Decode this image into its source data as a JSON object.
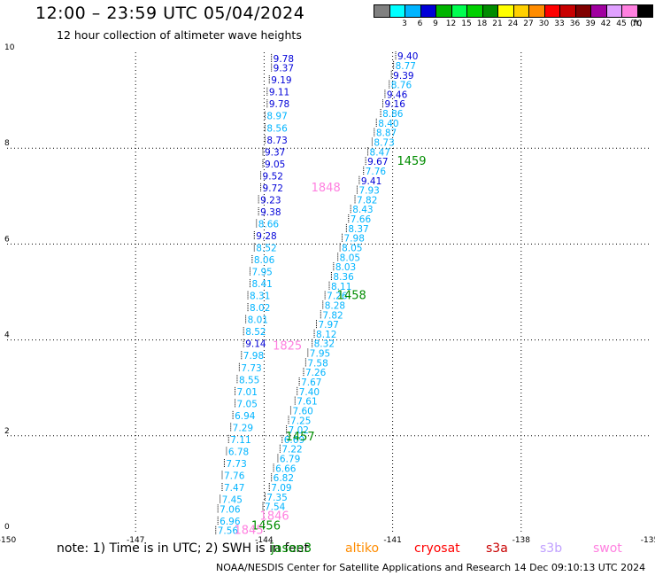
{
  "header": {
    "title": "12:00 – 23:59 UTC 05/04/2024",
    "subtitle": "12 hour collection of altimeter wave heights"
  },
  "colorbar": {
    "unit": "(ft)",
    "bins": [
      {
        "label": "",
        "color": "#808080"
      },
      {
        "label": "3",
        "color": "#00ffff"
      },
      {
        "label": "6",
        "color": "#00b4ff"
      },
      {
        "label": "9",
        "color": "#0000d8"
      },
      {
        "label": "12",
        "color": "#00b400"
      },
      {
        "label": "15",
        "color": "#00ff50"
      },
      {
        "label": "18",
        "color": "#00d000"
      },
      {
        "label": "21",
        "color": "#008c00"
      },
      {
        "label": "24",
        "color": "#ffff00"
      },
      {
        "label": "27",
        "color": "#ffd000"
      },
      {
        "label": "30",
        "color": "#ff8c00"
      },
      {
        "label": "33",
        "color": "#ff0000"
      },
      {
        "label": "36",
        "color": "#c80000"
      },
      {
        "label": "39",
        "color": "#800000"
      },
      {
        "label": "42",
        "color": "#a000a0"
      },
      {
        "label": "45",
        "color": "#e0a0ff"
      },
      {
        "label": "70",
        "color": "#ff80e0"
      },
      {
        "label": "",
        "color": "#000000"
      }
    ]
  },
  "legend": {
    "note": "note:  1) Time is in UTC;  2) SWH is in feet",
    "satellites": [
      {
        "name": "jason3",
        "color": "#008c00"
      },
      {
        "name": "altiko",
        "color": "#ff8c00"
      },
      {
        "name": "cryosat",
        "color": "#ff0000"
      },
      {
        "name": "s3a",
        "color": "#c80000"
      },
      {
        "name": "s3b",
        "color": "#c0a0ff"
      },
      {
        "name": "swot",
        "color": "#ff80e0"
      }
    ]
  },
  "footer": "NOAA/NESDIS Center for Satellite Applications and Research   14 Dec 09:10:13 UTC 2024",
  "chart_data": {
    "type": "scatter",
    "title": "12:00 – 23:59 UTC 05/04/2024",
    "subtitle": "12 hour collection of altimeter wave heights",
    "xlim": [
      -150,
      -135
    ],
    "ylim": [
      0,
      10
    ],
    "xticks": [
      "-150",
      "-147",
      "-144",
      "-141",
      "-138",
      "-135"
    ],
    "yticks": [
      "0",
      "2",
      "4",
      "6",
      "8",
      "10"
    ],
    "grid": true,
    "track_labels": [
      {
        "text": "1459",
        "x": -140.9,
        "y": 7.65,
        "color": "#008c00"
      },
      {
        "text": "1848",
        "x": -142.9,
        "y": 7.1,
        "color": "#ff80e0"
      },
      {
        "text": "1458",
        "x": -142.3,
        "y": 4.85,
        "color": "#008c00"
      },
      {
        "text": "1825",
        "x": -143.8,
        "y": 3.8,
        "color": "#ff80e0"
      },
      {
        "text": "1457",
        "x": -143.5,
        "y": 1.9,
        "color": "#008c00"
      },
      {
        "text": "1846",
        "x": -144.1,
        "y": 0.25,
        "color": "#ff80e0"
      },
      {
        "text": "1456",
        "x": -144.3,
        "y": 0.05,
        "color": "#008c00"
      },
      {
        "text": "1845",
        "x": -144.7,
        "y": -0.05,
        "color": "#ff80e0"
      }
    ],
    "series": [
      {
        "name": "1459",
        "points": [
          {
            "x": -140.95,
            "y": 9.85,
            "v": "9.40",
            "c": "#0000d8"
          },
          {
            "x": -141.0,
            "y": 9.65,
            "v": "8.77",
            "c": "#00b4ff"
          },
          {
            "x": -141.05,
            "y": 9.45,
            "v": "9.39",
            "c": "#0000d8"
          },
          {
            "x": -141.1,
            "y": 9.25,
            "v": "8.76",
            "c": "#00b4ff"
          },
          {
            "x": -141.2,
            "y": 9.05,
            "v": "9.46",
            "c": "#0000d8"
          },
          {
            "x": -141.25,
            "y": 8.85,
            "v": "9.16",
            "c": "#0000d8"
          },
          {
            "x": -141.3,
            "y": 8.65,
            "v": "8.86",
            "c": "#00b4ff"
          },
          {
            "x": -141.4,
            "y": 8.45,
            "v": "8.40",
            "c": "#00b4ff"
          },
          {
            "x": -141.45,
            "y": 8.25,
            "v": "8.87",
            "c": "#00b4ff"
          },
          {
            "x": -141.5,
            "y": 8.05,
            "v": "8.73",
            "c": "#00b4ff"
          },
          {
            "x": -141.6,
            "y": 7.85,
            "v": "8.47",
            "c": "#00b4ff"
          },
          {
            "x": -141.65,
            "y": 7.65,
            "v": "9.67",
            "c": "#0000d8"
          },
          {
            "x": -141.7,
            "y": 7.45,
            "v": "7.76",
            "c": "#00b4ff"
          },
          {
            "x": -141.8,
            "y": 7.25,
            "v": "9.41",
            "c": "#0000d8"
          },
          {
            "x": -141.85,
            "y": 7.05,
            "v": "7.93",
            "c": "#00b4ff"
          },
          {
            "x": -141.9,
            "y": 6.85,
            "v": "7.82",
            "c": "#00b4ff"
          },
          {
            "x": -142.0,
            "y": 6.65,
            "v": "8.43",
            "c": "#00b4ff"
          },
          {
            "x": -142.05,
            "y": 6.45,
            "v": "7.66",
            "c": "#00b4ff"
          },
          {
            "x": -142.1,
            "y": 6.25,
            "v": "8.37",
            "c": "#00b4ff"
          },
          {
            "x": -142.2,
            "y": 6.05,
            "v": "7.98",
            "c": "#00b4ff"
          },
          {
            "x": -142.25,
            "y": 5.85,
            "v": "8.05",
            "c": "#00b4ff"
          },
          {
            "x": -142.3,
            "y": 5.65,
            "v": "8.05",
            "c": "#00b4ff"
          },
          {
            "x": -142.4,
            "y": 5.45,
            "v": "8.03",
            "c": "#00b4ff"
          },
          {
            "x": -142.45,
            "y": 5.25,
            "v": "8.36",
            "c": "#00b4ff"
          },
          {
            "x": -142.5,
            "y": 5.05,
            "v": "8.11",
            "c": "#00b4ff"
          },
          {
            "x": -142.6,
            "y": 4.85,
            "v": "7.26",
            "c": "#00b4ff"
          },
          {
            "x": -142.65,
            "y": 4.65,
            "v": "8.28",
            "c": "#00b4ff"
          },
          {
            "x": -142.7,
            "y": 4.45,
            "v": "7.82",
            "c": "#00b4ff"
          },
          {
            "x": -142.8,
            "y": 4.25,
            "v": "7.97",
            "c": "#00b4ff"
          },
          {
            "x": -142.85,
            "y": 4.05,
            "v": "8.12",
            "c": "#00b4ff"
          },
          {
            "x": -142.9,
            "y": 3.85,
            "v": "8.32",
            "c": "#00b4ff"
          },
          {
            "x": -143.0,
            "y": 3.65,
            "v": "7.95",
            "c": "#00b4ff"
          },
          {
            "x": -143.05,
            "y": 3.45,
            "v": "7.58",
            "c": "#00b4ff"
          },
          {
            "x": -143.1,
            "y": 3.25,
            "v": "7.26",
            "c": "#00b4ff"
          },
          {
            "x": -143.2,
            "y": 3.05,
            "v": "7.67",
            "c": "#00b4ff"
          },
          {
            "x": -143.25,
            "y": 2.85,
            "v": "7.40",
            "c": "#00b4ff"
          },
          {
            "x": -143.3,
            "y": 2.65,
            "v": "7.61",
            "c": "#00b4ff"
          },
          {
            "x": -143.4,
            "y": 2.45,
            "v": "7.60",
            "c": "#00b4ff"
          },
          {
            "x": -143.45,
            "y": 2.25,
            "v": "7.25",
            "c": "#00b4ff"
          },
          {
            "x": -143.5,
            "y": 2.05,
            "v": "7.02",
            "c": "#00b4ff"
          },
          {
            "x": -143.6,
            "y": 1.85,
            "v": "6.69",
            "c": "#00b4ff"
          },
          {
            "x": -143.65,
            "y": 1.65,
            "v": "7.22",
            "c": "#00b4ff"
          },
          {
            "x": -143.7,
            "y": 1.45,
            "v": "6.79",
            "c": "#00b4ff"
          },
          {
            "x": -143.8,
            "y": 1.25,
            "v": "6.66",
            "c": "#00b4ff"
          },
          {
            "x": -143.85,
            "y": 1.05,
            "v": "6.82",
            "c": "#00b4ff"
          },
          {
            "x": -143.9,
            "y": 0.85,
            "v": "7.09",
            "c": "#00b4ff"
          },
          {
            "x": -144.0,
            "y": 0.65,
            "v": "7.35",
            "c": "#00b4ff"
          },
          {
            "x": -144.05,
            "y": 0.45,
            "v": "7.54",
            "c": "#00b4ff"
          }
        ]
      },
      {
        "name": "1848",
        "points": [
          {
            "x": -143.85,
            "y": 9.8,
            "v": "9.78",
            "c": "#0000d8"
          },
          {
            "x": -143.85,
            "y": 9.6,
            "v": "9.37",
            "c": "#0000d8"
          },
          {
            "x": -143.9,
            "y": 9.35,
            "v": "9.19",
            "c": "#0000d8"
          },
          {
            "x": -143.95,
            "y": 9.1,
            "v": "9.11",
            "c": "#0000d8"
          },
          {
            "x": -143.95,
            "y": 8.85,
            "v": "9.78",
            "c": "#0000d8"
          },
          {
            "x": -144.0,
            "y": 8.6,
            "v": "8.97",
            "c": "#00b4ff"
          },
          {
            "x": -144.0,
            "y": 8.35,
            "v": "8.56",
            "c": "#00b4ff"
          },
          {
            "x": -144.0,
            "y": 8.1,
            "v": "8.73",
            "c": "#0000d8"
          },
          {
            "x": -144.05,
            "y": 7.85,
            "v": "9.37",
            "c": "#0000d8"
          },
          {
            "x": -144.05,
            "y": 7.6,
            "v": "9.05",
            "c": "#0000d8"
          },
          {
            "x": -144.1,
            "y": 7.35,
            "v": "9.52",
            "c": "#0000d8"
          },
          {
            "x": -144.1,
            "y": 7.1,
            "v": "9.72",
            "c": "#0000d8"
          },
          {
            "x": -144.15,
            "y": 6.85,
            "v": "9.23",
            "c": "#0000d8"
          },
          {
            "x": -144.15,
            "y": 6.6,
            "v": "9.38",
            "c": "#0000d8"
          },
          {
            "x": -144.2,
            "y": 6.35,
            "v": "8.66",
            "c": "#00b4ff"
          },
          {
            "x": -144.25,
            "y": 6.1,
            "v": "9.28",
            "c": "#0000d8"
          },
          {
            "x": -144.25,
            "y": 5.85,
            "v": "8.52",
            "c": "#00b4ff"
          },
          {
            "x": -144.3,
            "y": 5.6,
            "v": "8.06",
            "c": "#00b4ff"
          },
          {
            "x": -144.35,
            "y": 5.35,
            "v": "7.95",
            "c": "#00b4ff"
          },
          {
            "x": -144.35,
            "y": 5.1,
            "v": "8.41",
            "c": "#00b4ff"
          },
          {
            "x": -144.4,
            "y": 4.85,
            "v": "8.31",
            "c": "#00b4ff"
          },
          {
            "x": -144.4,
            "y": 4.6,
            "v": "8.02",
            "c": "#00b4ff"
          },
          {
            "x": -144.45,
            "y": 4.35,
            "v": "8.01",
            "c": "#00b4ff"
          },
          {
            "x": -144.5,
            "y": 4.1,
            "v": "8.52",
            "c": "#00b4ff"
          },
          {
            "x": -144.5,
            "y": 3.85,
            "v": "9.14",
            "c": "#0000d8"
          },
          {
            "x": -144.55,
            "y": 3.6,
            "v": "7.98",
            "c": "#00b4ff"
          },
          {
            "x": -144.6,
            "y": 3.35,
            "v": "7.73",
            "c": "#00b4ff"
          },
          {
            "x": -144.65,
            "y": 3.1,
            "v": "8.55",
            "c": "#00b4ff"
          },
          {
            "x": -144.7,
            "y": 2.85,
            "v": "7.01",
            "c": "#00b4ff"
          },
          {
            "x": -144.7,
            "y": 2.6,
            "v": "7.05",
            "c": "#00b4ff"
          },
          {
            "x": -144.75,
            "y": 2.35,
            "v": "6.94",
            "c": "#00b4ff"
          },
          {
            "x": -144.8,
            "y": 2.1,
            "v": "7.29",
            "c": "#00b4ff"
          },
          {
            "x": -144.85,
            "y": 1.85,
            "v": "7.11",
            "c": "#00b4ff"
          },
          {
            "x": -144.9,
            "y": 1.6,
            "v": "6.78",
            "c": "#00b4ff"
          },
          {
            "x": -144.95,
            "y": 1.35,
            "v": "7.73",
            "c": "#00b4ff"
          },
          {
            "x": -145.0,
            "y": 1.1,
            "v": "7.76",
            "c": "#00b4ff"
          },
          {
            "x": -145.0,
            "y": 0.85,
            "v": "7.47",
            "c": "#00b4ff"
          },
          {
            "x": -145.05,
            "y": 0.6,
            "v": "7.45",
            "c": "#00b4ff"
          },
          {
            "x": -145.1,
            "y": 0.4,
            "v": "7.06",
            "c": "#00b4ff"
          },
          {
            "x": -145.1,
            "y": 0.15,
            "v": "6.96",
            "c": "#00b4ff"
          },
          {
            "x": -145.15,
            "y": -0.05,
            "v": "7.56",
            "c": "#00b4ff"
          }
        ]
      }
    ]
  }
}
